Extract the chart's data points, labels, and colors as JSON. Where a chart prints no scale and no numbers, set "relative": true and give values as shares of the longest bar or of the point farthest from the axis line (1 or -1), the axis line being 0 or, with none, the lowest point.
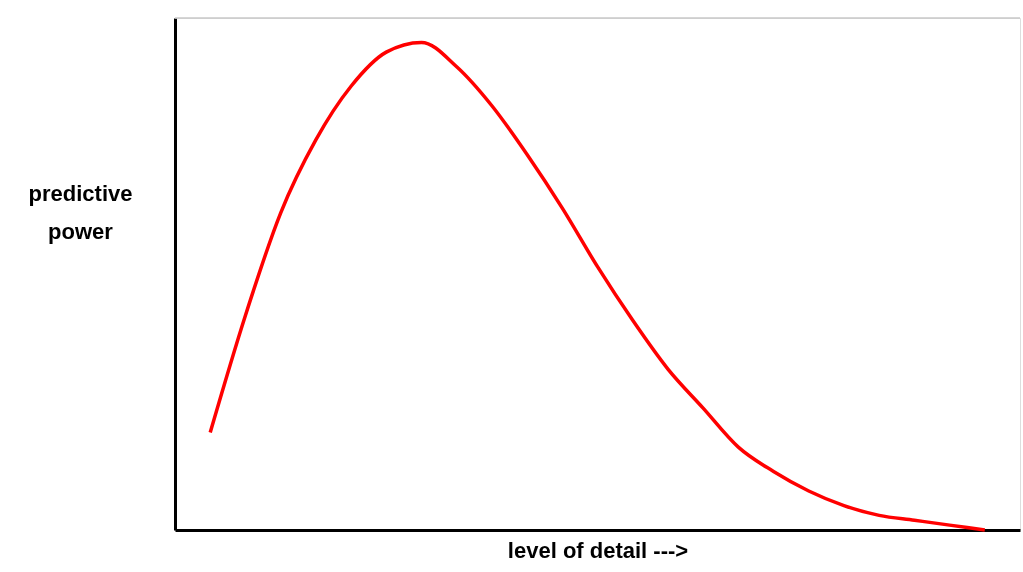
{
  "chart_data": {
    "type": "line",
    "relative": true,
    "xlabel": "level of detail --->",
    "ylabel": "predictive power",
    "categories": [
      null,
      null,
      null,
      null,
      null,
      null,
      null,
      null,
      null,
      null,
      null,
      null,
      null,
      null,
      null,
      null,
      null,
      null,
      null,
      null,
      null,
      null,
      null
    ],
    "series": [
      {
        "color": "#ff0000",
        "values": [
          0.2,
          0.44,
          0.65,
          0.8,
          0.91,
          0.98,
          1.0,
          0.95,
          0.87,
          0.77,
          0.66,
          0.54,
          0.43,
          0.33,
          0.25,
          0.17,
          0.12,
          0.08,
          0.05,
          0.03,
          0.02,
          0.01,
          0.0
        ]
      }
    ],
    "grid": false,
    "marker": "none",
    "line_style": "solid"
  }
}
